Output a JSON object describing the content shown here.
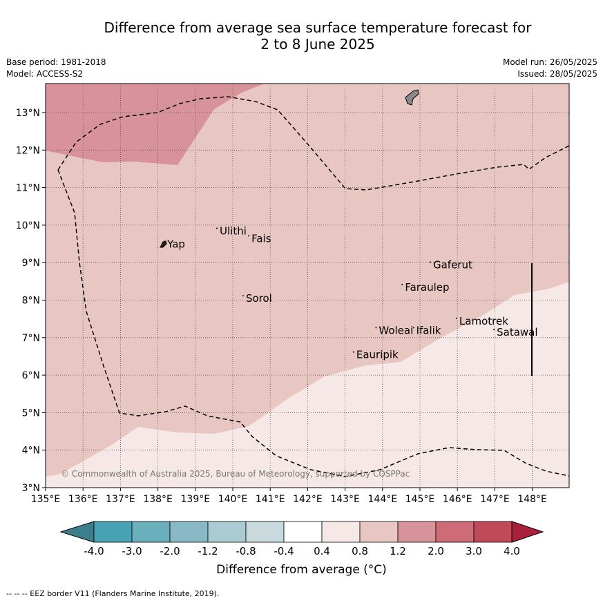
{
  "header": {
    "title_line1": "Difference from average sea surface temperature forecast for",
    "title_line2": "2 to 8 June 2025",
    "base_period": "Base period: 1981-2018",
    "model": "Model: ACCESS-S2",
    "model_run": "Model run: 26/05/2025",
    "issued": "Issued: 28/05/2025"
  },
  "map": {
    "lon_ticks": [
      "135°E",
      "136°E",
      "137°E",
      "138°E",
      "139°E",
      "140°E",
      "141°E",
      "142°E",
      "143°E",
      "144°E",
      "145°E",
      "146°E",
      "147°E",
      "148°E"
    ],
    "lat_ticks": [
      "3°N",
      "4°N",
      "5°N",
      "6°N",
      "7°N",
      "8°N",
      "9°N",
      "10°N",
      "11°N",
      "12°N",
      "13°N"
    ],
    "lon_range": [
      135,
      149
    ],
    "lat_range": [
      3,
      13.8
    ],
    "places": [
      {
        "name": "Yap",
        "lon": 138.25,
        "lat": 9.4
      },
      {
        "name": "Ulithi",
        "lon": 139.65,
        "lat": 9.75
      },
      {
        "name": "Fais",
        "lon": 140.5,
        "lat": 9.55
      },
      {
        "name": "Sorol",
        "lon": 140.35,
        "lat": 7.95
      },
      {
        "name": "Gaferut",
        "lon": 145.35,
        "lat": 8.85
      },
      {
        "name": "Faraulep",
        "lon": 144.6,
        "lat": 8.25
      },
      {
        "name": "Lamotrek",
        "lon": 146.05,
        "lat": 7.35
      },
      {
        "name": "Woleai",
        "lon": 143.9,
        "lat": 7.1
      },
      {
        "name": "Ifalik",
        "lon": 144.9,
        "lat": 7.1
      },
      {
        "name": "Satawal",
        "lon": 147.05,
        "lat": 7.05
      },
      {
        "name": "Eauripik",
        "lon": 143.3,
        "lat": 6.45
      }
    ],
    "copyright": "© Commonwealth of Australia 2025, Bureau of Meteorology, supported by COSPPac"
  },
  "colorbar": {
    "tick_labels": [
      "-4.0",
      "-3.0",
      "-2.0",
      "-1.2",
      "-0.8",
      "-0.4",
      "0.4",
      "0.8",
      "1.2",
      "2.0",
      "3.0",
      "4.0"
    ],
    "colors": [
      "#47a2b3",
      "#6bafbc",
      "#89b9c4",
      "#a9cbd1",
      "#c8dadd",
      "#ffffff",
      "#f5e8e6",
      "#e8c7c2",
      "#d8939a",
      "#cd6c77",
      "#c04a57"
    ],
    "under_color": "#3a7f8b",
    "over_color": "#a8203a",
    "label": "Difference from average (°C)"
  },
  "footnote": "-- -- -- EEZ border V11 (Flanders Marine Institute, 2019)."
}
